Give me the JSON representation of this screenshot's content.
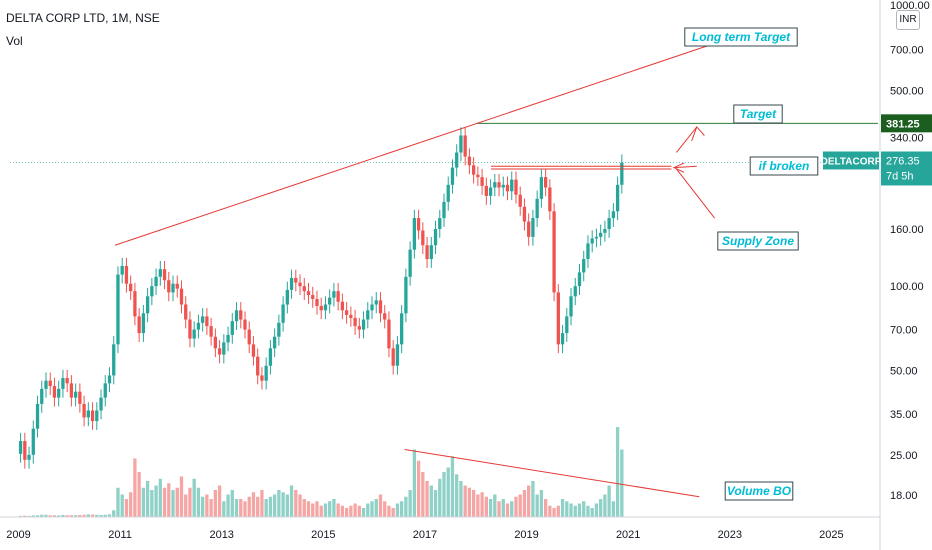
{
  "header": {
    "title": "DELTA CORP LTD, 1M, NSE",
    "volume_label": "Vol",
    "currency": "INR"
  },
  "price_axis": {
    "top_label": "1000.00",
    "labels": [
      "700.00",
      "500.00",
      "340.00",
      "160.00",
      "100.00",
      "70.00",
      "50.00",
      "35.00",
      "25.00",
      "18.00"
    ]
  },
  "time_axis": {
    "labels": [
      "2009",
      "2011",
      "2013",
      "2015",
      "2017",
      "2019",
      "2021",
      "2023",
      "2025"
    ]
  },
  "tags": {
    "target_price": "381.25",
    "symbol": "DELTACORP",
    "last_price": "276.35",
    "countdown": "7d 5h"
  },
  "annotations": {
    "long_term_target": "Long term Target",
    "target": "Target",
    "if_broken": "if broken",
    "supply_zone": "Supply Zone",
    "volume_bo": "Volume BO"
  },
  "colors": {
    "up": "#26a69a",
    "down": "#ef5350",
    "vol_up": "#8fd1c7",
    "vol_down": "#f5a6a4",
    "line": "#e53935",
    "target_line": "#2e7d32",
    "label_text": "#00bcd4"
  },
  "chart_data": {
    "type": "candlestick",
    "interval": "1M",
    "scale": "log",
    "ylim": [
      15,
      1000
    ],
    "xlim": [
      "2008-11",
      "2025-12"
    ],
    "closes_start": "2009-01",
    "closes_monthly": [
      28,
      24,
      25,
      31,
      38,
      43,
      46,
      44,
      40,
      43,
      47,
      45,
      40,
      42,
      38,
      34,
      36,
      33,
      36,
      40,
      45,
      48,
      62,
      110,
      118,
      102,
      96,
      78,
      68,
      80,
      92,
      100,
      108,
      115,
      105,
      95,
      102,
      98,
      86,
      76,
      65,
      70,
      74,
      78,
      72,
      66,
      60,
      57,
      63,
      67,
      75,
      82,
      76,
      70,
      62,
      56,
      48,
      46,
      52,
      60,
      66,
      74,
      86,
      97,
      107,
      103,
      100,
      96,
      93,
      90,
      85,
      82,
      86,
      91,
      96,
      88,
      82,
      79,
      77,
      72,
      70,
      76,
      82,
      86,
      89,
      80,
      76,
      60,
      52,
      62,
      80,
      108,
      135,
      175,
      158,
      140,
      125,
      140,
      160,
      175,
      200,
      230,
      265,
      300,
      345,
      290,
      270,
      250,
      245,
      228,
      210,
      225,
      235,
      225,
      230,
      218,
      240,
      212,
      192,
      170,
      150,
      175,
      205,
      245,
      225,
      185,
      95,
      62,
      68,
      78,
      92,
      100,
      112,
      125,
      142,
      148,
      150,
      155,
      160,
      175,
      185,
      230,
      276
    ],
    "volume_start": "2009-01",
    "volume_monthly": [
      0.5,
      0.6,
      0.5,
      0.7,
      0.8,
      1.0,
      1.0,
      0.8,
      0.8,
      0.7,
      0.9,
      0.8,
      0.8,
      0.8,
      0.9,
      1.0,
      1.2,
      1.1,
      1.0,
      0.9,
      1.0,
      1.2,
      3.0,
      13.0,
      10.0,
      8.0,
      11.0,
      26.0,
      20.0,
      13.0,
      16.0,
      12.0,
      14.0,
      17.0,
      13.0,
      15.0,
      12.0,
      13.0,
      18.0,
      10.0,
      13.0,
      17.0,
      13.0,
      9.0,
      10.0,
      8.0,
      12.0,
      14.0,
      7.0,
      10.0,
      12.0,
      8.0,
      8.0,
      7.0,
      9.0,
      11.0,
      9.0,
      12.0,
      8.0,
      9.0,
      10.0,
      12.0,
      11.0,
      10.0,
      14.0,
      12.0,
      10.0,
      8.0,
      7.0,
      6.0,
      7.0,
      5.0,
      6.0,
      7.0,
      8.0,
      6.0,
      5.0,
      4.0,
      5.0,
      6.0,
      5.0,
      4.0,
      6.0,
      7.0,
      8.0,
      10.0,
      7.0,
      5.0,
      4.0,
      6.0,
      7.0,
      9.0,
      12.0,
      30.0,
      25.0,
      20.0,
      16.0,
      14.0,
      12.0,
      17.0,
      20.0,
      22.0,
      27.0,
      19.0,
      16.0,
      14.0,
      13.0,
      12.0,
      10.0,
      11.0,
      9.0,
      8.0,
      10.0,
      7.0,
      8.0,
      6.0,
      7.0,
      9.0,
      10.0,
      12.0,
      14.0,
      16.0,
      10.0,
      12.0,
      8.0,
      5.0,
      4.0,
      5.0,
      8.0,
      7.0,
      6.0,
      5.0,
      6.0,
      7.0,
      5.0,
      4.0,
      6.0,
      8.0,
      10.0,
      14.0,
      7.0,
      40.0,
      30.0
    ]
  }
}
